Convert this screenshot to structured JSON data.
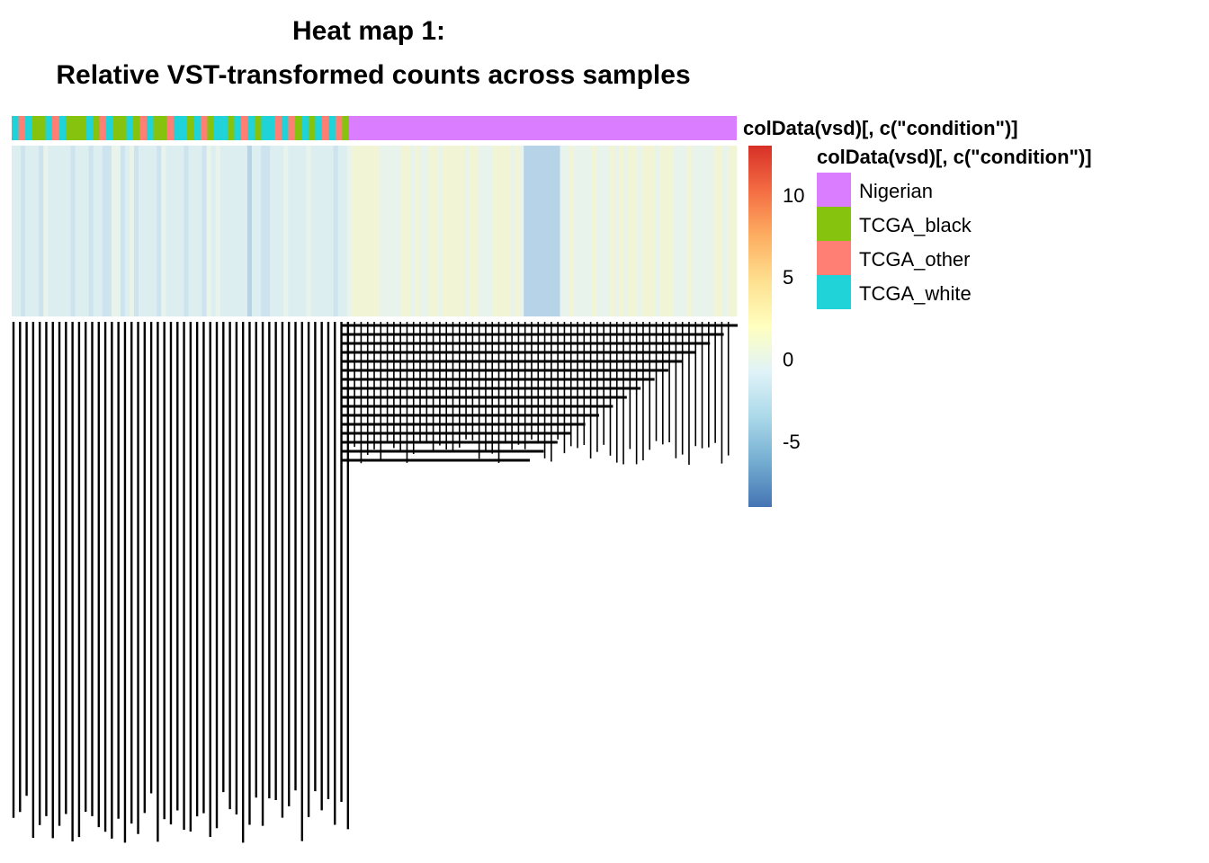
{
  "chart_data": {
    "type": "heatmap",
    "title": "Heat map 1:",
    "subtitle": "Relative VST-transformed counts across samples",
    "annotation_label": "colData(vsd)[, c(\"condition\")]",
    "legend": {
      "title": "colData(vsd)[, c(\"condition\")]",
      "items": [
        {
          "label": "Nigerian",
          "color": "#DB7DFF"
        },
        {
          "label": "TCGA_black",
          "color": "#85C30E"
        },
        {
          "label": "TCGA_other",
          "color": "#FF7F74"
        },
        {
          "label": "TCGA_white",
          "color": "#1FD3D8"
        }
      ]
    },
    "colorbar": {
      "range": [
        -9,
        13
      ],
      "ticks": [
        "10",
        "5",
        "0",
        "-5"
      ],
      "tick_values": [
        10,
        5,
        0,
        -5
      ],
      "colors": [
        "#D73027",
        "#F46D43",
        "#FDAE61",
        "#FEE090",
        "#FFFFBF",
        "#E0F3F8",
        "#ABD9E9",
        "#74ADD1",
        "#4575B4"
      ]
    },
    "column_groups": [
      {
        "condition": "TCGA (mixed black/other/white)",
        "fraction": 0.465
      },
      {
        "condition": "Nigerian",
        "fraction": 0.535
      }
    ],
    "column_labels_legible": false
  }
}
